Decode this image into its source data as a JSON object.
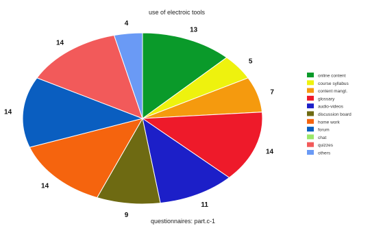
{
  "chart_data": {
    "type": "pie",
    "title": "use of electroic tools",
    "caption": "questionnaires: part.c-1",
    "legend_position": "right",
    "slices": [
      {
        "label": "online content",
        "value": 13,
        "color": "#0a9a2a"
      },
      {
        "label": "course syllabus",
        "value": 5,
        "color": "#eef20e"
      },
      {
        "label": "content mangt.",
        "value": 7,
        "color": "#f59a0e"
      },
      {
        "label": "glossary",
        "value": 14,
        "color": "#ee1a2a"
      },
      {
        "label": "audio-videos",
        "value": 11,
        "color": "#1c1fc8"
      },
      {
        "label": "discussion board",
        "value": 9,
        "color": "#6e6a12"
      },
      {
        "label": "home work",
        "value": 14,
        "color": "#f5640e"
      },
      {
        "label": "forum",
        "value": 14,
        "color": "#0a5ec0"
      },
      {
        "label": "chat",
        "value": null,
        "color": "#9be86a"
      },
      {
        "label": "quizzes",
        "value": 14,
        "color": "#f25a5a"
      },
      {
        "label": "others",
        "value": 4,
        "color": "#6a9af5"
      }
    ]
  }
}
